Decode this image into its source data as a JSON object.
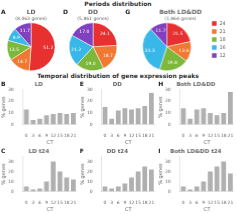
{
  "chart_data": [
    {
      "title": "Periods distribution",
      "charts": [
        {
          "type": "pie",
          "title": "LD",
          "subtitle": "(8,063 genes)",
          "annotation": "A",
          "categories": [
            "24",
            "21",
            "18",
            "16",
            "12"
          ],
          "values": [
            51.2,
            14.7,
            13.5,
            8.9,
            11.7
          ],
          "value_labels": [
            "51.2",
            "14.7",
            "13.5",
            "8.9",
            "11.7"
          ],
          "colors": [
            "#e83030",
            "#f07830",
            "#7db83a",
            "#38b8e8",
            "#8040c0"
          ],
          "data_labels": true
        },
        {
          "type": "pie",
          "title": "DD",
          "subtitle": "(5,861 genes)",
          "annotation": "D",
          "categories": [
            "24",
            "21",
            "18",
            "16",
            "12"
          ],
          "values": [
            24.1,
            18.7,
            19.0,
            21.2,
            17.0
          ],
          "value_labels": [
            "24.1",
            "18.7",
            "19.0",
            "21.2",
            "17.0"
          ],
          "colors": [
            "#e83030",
            "#f07830",
            "#7db83a",
            "#38b8e8",
            "#8040c0"
          ],
          "data_labels": true
        },
        {
          "type": "pie",
          "title": "Both LD&DD",
          "subtitle": "(1,864 genes)",
          "annotation": "G",
          "categories": [
            "24",
            "21",
            "18",
            "16",
            "12"
          ],
          "values": [
            21.5,
            13.6,
            19.8,
            33.3,
            11.7
          ],
          "value_labels": [
            "21.5",
            "13.6",
            "19.8",
            "33.3",
            "11.7"
          ],
          "colors": [
            "#e83030",
            "#f07830",
            "#7db83a",
            "#38b8e8",
            "#8040c0"
          ],
          "data_labels": true,
          "legend": "right"
        }
      ]
    },
    {
      "title": "Temporal distribution of gene expression peaks",
      "charts": [
        {
          "type": "bar",
          "title": "LD",
          "annotation": "B",
          "categories": [
            "0",
            "3",
            "6",
            "9",
            "12",
            "15",
            "18",
            "21"
          ],
          "values": [
            13,
            4,
            5,
            8,
            9,
            10,
            9,
            10
          ],
          "color": "#b0b0b0",
          "xlabel": "CT",
          "ylabel": "% genes",
          "ylim": [
            0,
            30
          ],
          "yticks": [
            0,
            10,
            20,
            30
          ],
          "grid": false
        },
        {
          "type": "bar",
          "title": "DD",
          "annotation": "E",
          "categories": [
            "0",
            "3",
            "6",
            "9",
            "12",
            "15",
            "18",
            "21"
          ],
          "values": [
            15,
            5,
            12,
            14,
            13,
            14,
            16,
            27
          ],
          "color": "#b0b0b0",
          "xlabel": "CT",
          "ylabel": "% genes",
          "ylim": [
            0,
            30
          ],
          "yticks": [
            0,
            10,
            20,
            30
          ],
          "grid": false
        },
        {
          "type": "bar",
          "title": "Both LD&DD",
          "annotation": "H",
          "categories": [
            "0",
            "3",
            "6",
            "9",
            "12",
            "15",
            "18",
            "21"
          ],
          "values": [
            14,
            5,
            13,
            14,
            10,
            8,
            10,
            28
          ],
          "color": "#b0b0b0",
          "xlabel": "CT",
          "ylabel": "% genes",
          "ylim": [
            0,
            30
          ],
          "yticks": [
            0,
            10,
            20,
            30
          ],
          "grid": false
        },
        {
          "type": "bar",
          "title": "LD t24",
          "annotation": "C",
          "categories": [
            "0",
            "3",
            "6",
            "9",
            "12",
            "15",
            "18",
            "21"
          ],
          "values": [
            5,
            2,
            3,
            10,
            30,
            20,
            14,
            12
          ],
          "color": "#b0b0b0",
          "xlabel": "CT",
          "ylabel": "% genes",
          "ylim": [
            0,
            35
          ],
          "yticks": [
            0,
            10,
            20,
            30
          ],
          "grid": false
        },
        {
          "type": "bar",
          "title": "DD t24",
          "annotation": "F",
          "categories": [
            "0",
            "3",
            "6",
            "9",
            "12",
            "15",
            "18",
            "21"
          ],
          "values": [
            5,
            3,
            5,
            8,
            14,
            20,
            25,
            22
          ],
          "color": "#b0b0b0",
          "xlabel": "CT",
          "ylabel": "% genes",
          "ylim": [
            0,
            35
          ],
          "yticks": [
            0,
            10,
            20,
            30
          ],
          "grid": false
        },
        {
          "type": "bar",
          "title": "Both LD&DD t24",
          "annotation": "I",
          "categories": [
            "0",
            "3",
            "6",
            "9",
            "12",
            "15",
            "18",
            "21"
          ],
          "values": [
            5,
            2,
            5,
            10,
            20,
            25,
            30,
            18
          ],
          "color": "#b0b0b0",
          "xlabel": "CT",
          "ylabel": "% genes",
          "ylim": [
            0,
            35
          ],
          "yticks": [
            0,
            10,
            20,
            30
          ],
          "grid": false
        }
      ]
    }
  ]
}
